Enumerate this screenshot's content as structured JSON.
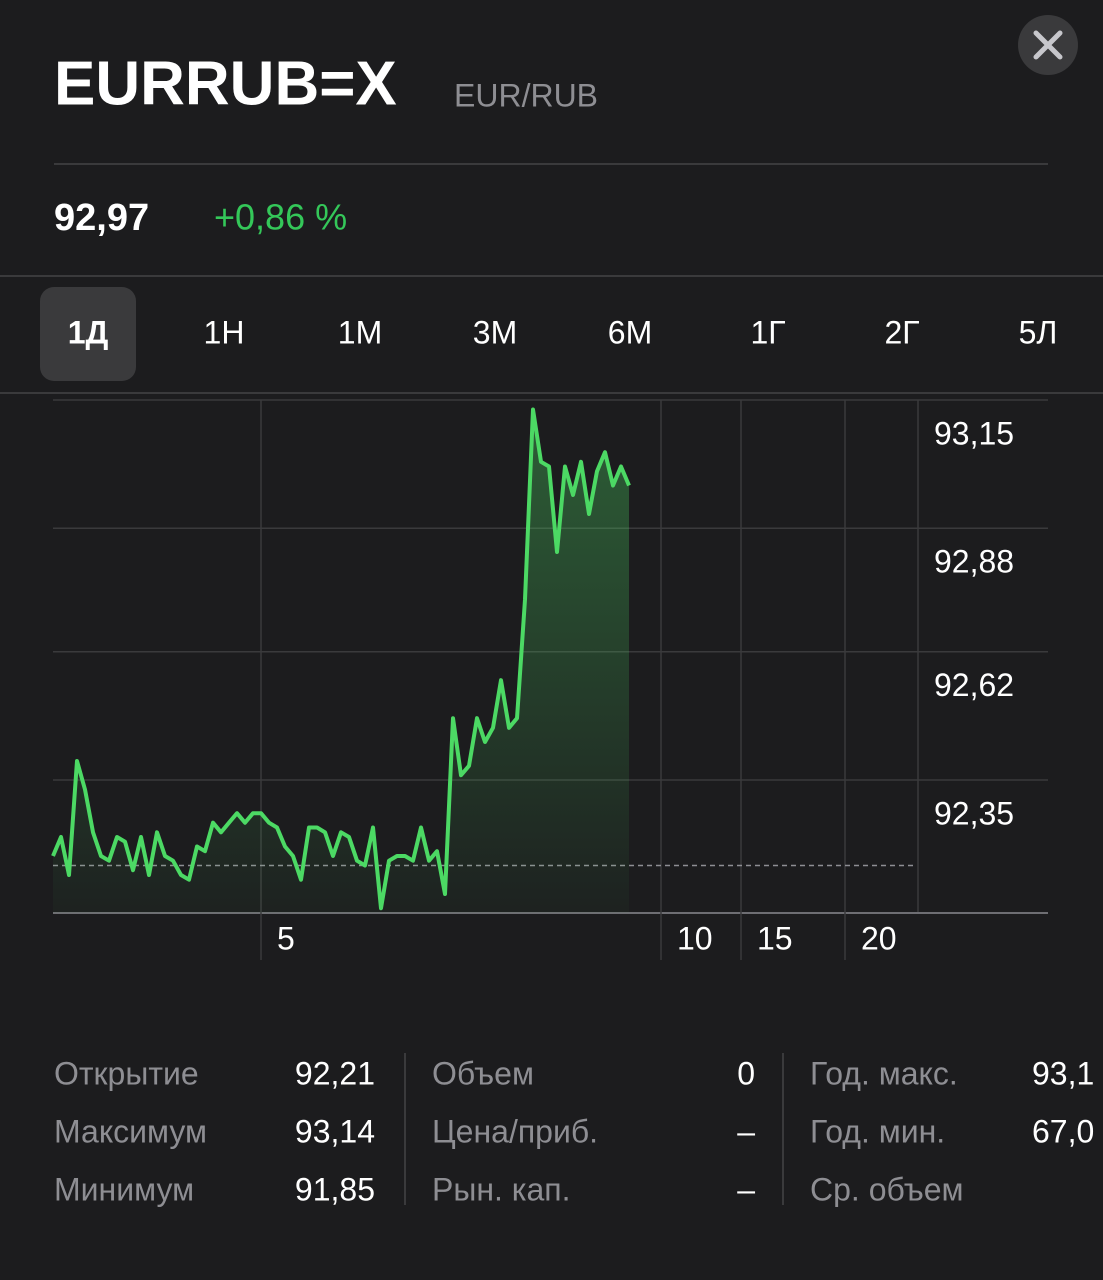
{
  "header": {
    "title": "EURRUB=X",
    "subtitle": "EUR/RUB",
    "price": "92,97",
    "change": "+0,86 %"
  },
  "tabs": [
    "1Д",
    "1Н",
    "1М",
    "3М",
    "6М",
    "1Г",
    "2Г",
    "5Л"
  ],
  "selected_tab": 0,
  "chart_data": {
    "type": "line",
    "color": "#4cd964",
    "x": [
      0,
      1,
      2,
      3,
      4,
      5,
      6,
      7,
      8,
      9,
      10,
      11,
      12,
      13,
      14,
      15,
      16,
      17,
      18,
      19,
      20,
      21,
      22,
      23,
      24,
      25,
      26,
      27,
      28,
      29,
      30,
      31,
      32,
      33,
      34,
      35,
      36,
      37,
      38,
      39,
      40,
      41,
      42,
      43,
      44,
      45,
      46,
      47,
      48,
      49,
      50,
      51,
      52,
      53,
      54,
      55,
      56,
      57,
      58,
      59,
      60,
      61,
      62,
      63,
      64,
      65,
      66,
      67,
      68,
      69,
      70,
      71,
      72
    ],
    "values": [
      92.19,
      92.23,
      92.15,
      92.39,
      92.33,
      92.24,
      92.19,
      92.18,
      92.23,
      92.22,
      92.16,
      92.23,
      92.15,
      92.24,
      92.19,
      92.18,
      92.15,
      92.14,
      92.21,
      92.2,
      92.26,
      92.24,
      92.26,
      92.28,
      92.26,
      92.28,
      92.28,
      92.26,
      92.25,
      92.21,
      92.19,
      92.14,
      92.25,
      92.25,
      92.24,
      92.19,
      92.24,
      92.23,
      92.18,
      92.17,
      92.25,
      92.08,
      92.18,
      92.19,
      92.19,
      92.18,
      92.25,
      92.18,
      92.2,
      92.11,
      92.48,
      92.36,
      92.38,
      92.48,
      92.43,
      92.46,
      92.56,
      92.46,
      92.48,
      92.73,
      93.13,
      93.02,
      93.01,
      92.83,
      93.01,
      92.95,
      93.02,
      92.91,
      93.0,
      93.04,
      92.97,
      93.01,
      92.97
    ],
    "previous_close": 92.17,
    "xlim": [
      0,
      108
    ],
    "xticks": [
      {
        "value": 26,
        "label": "5"
      },
      {
        "value": 76,
        "label": "10"
      },
      {
        "value": 86,
        "label": "15"
      },
      {
        "value": 99,
        "label": "20"
      }
    ],
    "ylim": [
      92.07,
      93.15
    ],
    "yticks": [
      {
        "value": 93.15,
        "label": "93,15"
      },
      {
        "value": 92.88,
        "label": "92,88"
      },
      {
        "value": 92.62,
        "label": "92,62"
      },
      {
        "value": 92.35,
        "label": "92,35"
      }
    ],
    "grid": true
  },
  "stats": [
    [
      {
        "label": "Открытие",
        "value": "92,21"
      },
      {
        "label": "Максимум",
        "value": "93,14"
      },
      {
        "label": "Минимум",
        "value": "91,85"
      }
    ],
    [
      {
        "label": "Объем",
        "value": "0"
      },
      {
        "label": "Цена/приб.",
        "value": "–"
      },
      {
        "label": "Рын. кап.",
        "value": "–"
      }
    ],
    [
      {
        "label": "Год. макс.",
        "value": "93,1"
      },
      {
        "label": "Год. мин.",
        "value": "67,0"
      },
      {
        "label": "Ср. объем"
      }
    ]
  ]
}
